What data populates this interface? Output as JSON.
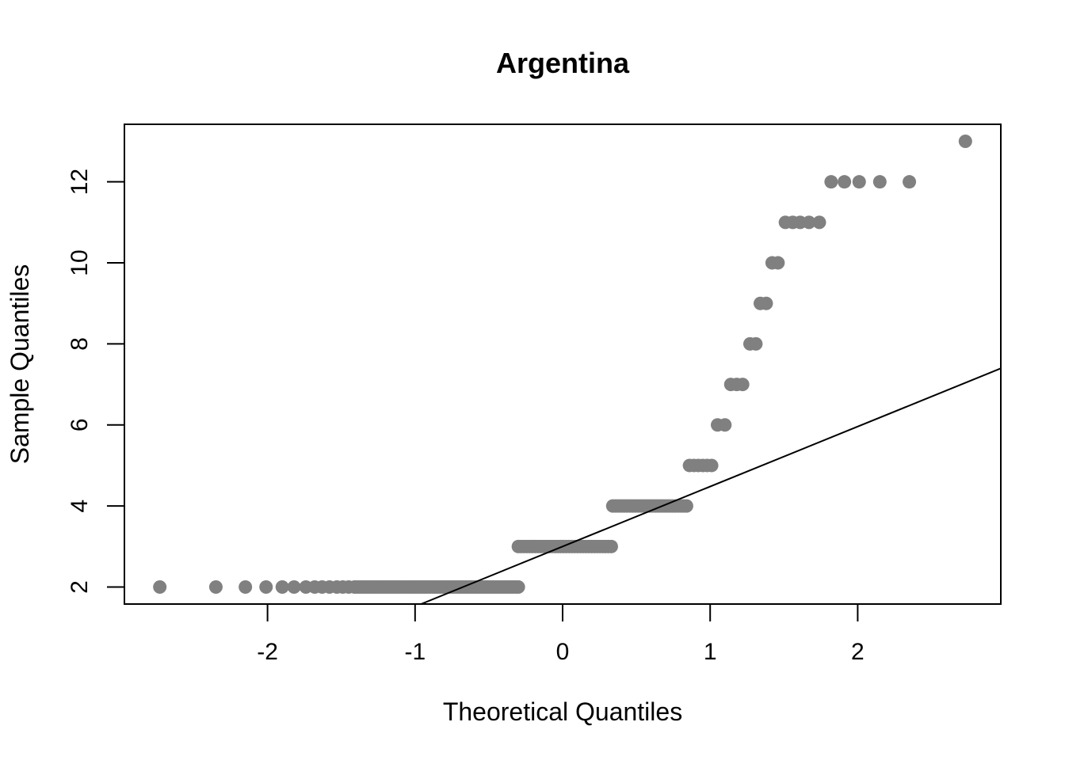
{
  "chart_data": {
    "type": "scatter",
    "title": "Argentina",
    "xlabel": "Theoretical Quantiles",
    "ylabel": "Sample Quantiles",
    "xlim": [
      -2.97,
      2.97
    ],
    "ylim": [
      1.58,
      13.42
    ],
    "xticks": [
      -2,
      -1,
      0,
      1,
      2
    ],
    "xtick_labels": [
      "-2",
      "-1",
      "0",
      "1",
      "2"
    ],
    "yticks": [
      2,
      4,
      6,
      8,
      10,
      12
    ],
    "ytick_labels": [
      "2",
      "4",
      "6",
      "8",
      "10",
      "12"
    ],
    "point_color": "#808080",
    "line_color": "#000000",
    "reference_line": {
      "intercept": 3.0,
      "slope": 1.48
    },
    "points_groups": [
      {
        "y": 2,
        "x_individual": [
          -2.73,
          -2.35,
          -2.15,
          -2.01,
          -1.9,
          -1.82,
          -1.74,
          -1.68,
          -1.63,
          -1.58,
          -1.53,
          -1.49,
          -1.45
        ],
        "x_range": [
          -1.41,
          -0.3
        ],
        "count_in_range": 60
      },
      {
        "y": 3,
        "x_range": [
          -0.3,
          0.33
        ],
        "count_in_range": 34
      },
      {
        "y": 4,
        "x_range": [
          0.34,
          0.84
        ],
        "count_in_range": 27
      },
      {
        "y": 5,
        "x_individual": [
          0.86,
          0.89,
          0.92,
          0.95,
          0.98,
          1.01
        ]
      },
      {
        "y": 6,
        "x_individual": [
          1.05,
          1.1
        ]
      },
      {
        "y": 7,
        "x_individual": [
          1.14,
          1.18,
          1.22
        ]
      },
      {
        "y": 8,
        "x_individual": [
          1.27,
          1.31
        ]
      },
      {
        "y": 9,
        "x_individual": [
          1.34,
          1.38
        ]
      },
      {
        "y": 10,
        "x_individual": [
          1.42,
          1.46
        ]
      },
      {
        "y": 11,
        "x_individual": [
          1.51,
          1.56,
          1.61,
          1.67,
          1.74
        ]
      },
      {
        "y": 12,
        "x_individual": [
          1.82,
          1.91,
          2.01,
          2.15,
          2.35
        ]
      },
      {
        "y": 13,
        "x_individual": [
          2.73
        ]
      }
    ]
  }
}
